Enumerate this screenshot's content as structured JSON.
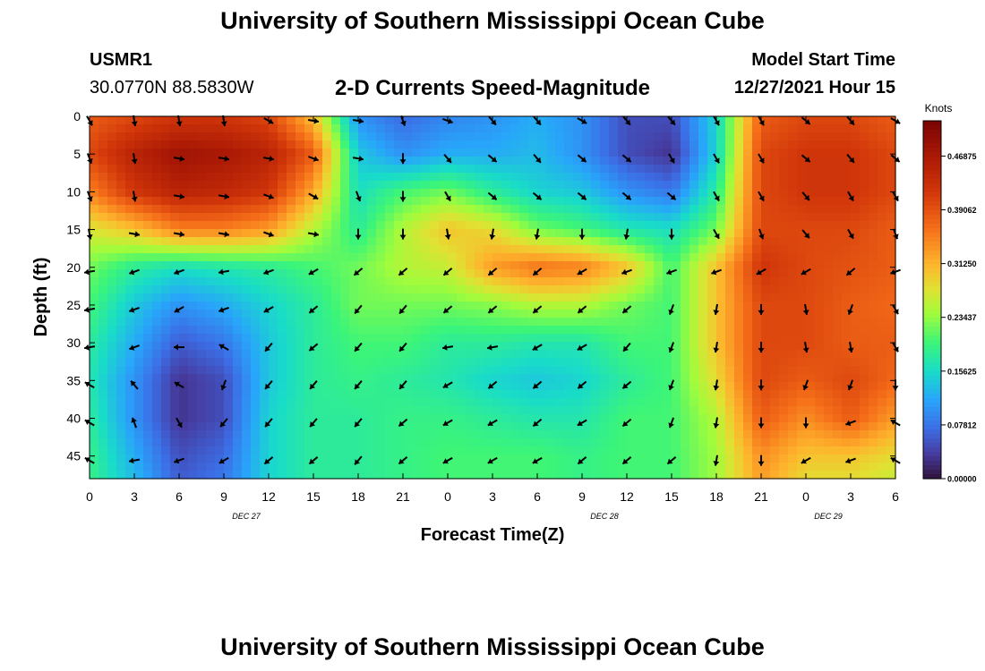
{
  "title": "University of Southern Mississippi Ocean Cube",
  "station": {
    "name": "USMR1",
    "coords": "30.0770N  88.5830W"
  },
  "model_start": {
    "label": "Model Start Time",
    "value": "12/27/2021 Hour 15"
  },
  "chart_data": {
    "type": "heatmap",
    "title": "2-D Currents Speed-Magnitude",
    "xlabel": "Forecast Time(Z)",
    "ylabel": "Depth (ft)",
    "x_tick_labels": [
      "0",
      "3",
      "6",
      "9",
      "12",
      "15",
      "18",
      "21",
      "0",
      "3",
      "6",
      "9",
      "12",
      "15",
      "18",
      "21",
      "0",
      "3",
      "6"
    ],
    "x_range_hours": [
      0,
      54
    ],
    "date_labels": [
      {
        "text": "DEC 27",
        "hour": 10.5
      },
      {
        "text": "DEC 28",
        "hour": 34.5
      },
      {
        "text": "DEC 29",
        "hour": 49.5
      }
    ],
    "y_ticks": [
      0,
      5,
      10,
      15,
      20,
      25,
      30,
      35,
      40,
      45
    ],
    "ylim": [
      0,
      48
    ],
    "y_inverted": true,
    "colorbar": {
      "label": "Knots",
      "ticks": [
        "0.46875",
        "0.39062",
        "0.31250",
        "0.23437",
        "0.15625",
        "0.07812",
        "0.00000"
      ],
      "range": [
        0,
        0.52
      ]
    },
    "speed_grid": {
      "hours": [
        0,
        3,
        6,
        9,
        12,
        15,
        18,
        21,
        24,
        27,
        30,
        33,
        36,
        39,
        42,
        45,
        48,
        51,
        54
      ],
      "depths": [
        0,
        5,
        10,
        15,
        20,
        25,
        30,
        35,
        40,
        45,
        48
      ],
      "values": [
        [
          0.38,
          0.4,
          0.42,
          0.42,
          0.4,
          0.3,
          0.1,
          0.07,
          0.09,
          0.1,
          0.12,
          0.1,
          0.05,
          0.05,
          0.15,
          0.38,
          0.4,
          0.4,
          0.38
        ],
        [
          0.4,
          0.45,
          0.48,
          0.47,
          0.45,
          0.38,
          0.14,
          0.1,
          0.12,
          0.12,
          0.13,
          0.1,
          0.05,
          0.03,
          0.15,
          0.4,
          0.42,
          0.42,
          0.4
        ],
        [
          0.35,
          0.42,
          0.45,
          0.44,
          0.42,
          0.32,
          0.16,
          0.2,
          0.22,
          0.18,
          0.15,
          0.14,
          0.1,
          0.08,
          0.18,
          0.4,
          0.42,
          0.42,
          0.4
        ],
        [
          0.27,
          0.3,
          0.35,
          0.35,
          0.33,
          0.25,
          0.18,
          0.25,
          0.3,
          0.28,
          0.22,
          0.2,
          0.17,
          0.16,
          0.22,
          0.4,
          0.4,
          0.4,
          0.38
        ],
        [
          0.22,
          0.18,
          0.16,
          0.17,
          0.18,
          0.2,
          0.22,
          0.25,
          0.26,
          0.33,
          0.36,
          0.35,
          0.3,
          0.2,
          0.3,
          0.42,
          0.4,
          0.39,
          0.38
        ],
        [
          0.2,
          0.14,
          0.1,
          0.12,
          0.15,
          0.18,
          0.22,
          0.22,
          0.22,
          0.23,
          0.25,
          0.25,
          0.22,
          0.2,
          0.3,
          0.4,
          0.4,
          0.38,
          0.37
        ],
        [
          0.18,
          0.12,
          0.06,
          0.08,
          0.14,
          0.18,
          0.2,
          0.2,
          0.18,
          0.18,
          0.17,
          0.17,
          0.2,
          0.2,
          0.3,
          0.4,
          0.4,
          0.38,
          0.38
        ],
        [
          0.17,
          0.1,
          0.03,
          0.05,
          0.14,
          0.18,
          0.19,
          0.18,
          0.17,
          0.15,
          0.14,
          0.15,
          0.18,
          0.2,
          0.28,
          0.4,
          0.38,
          0.4,
          0.37
        ],
        [
          0.18,
          0.1,
          0.03,
          0.05,
          0.15,
          0.18,
          0.18,
          0.19,
          0.19,
          0.18,
          0.17,
          0.17,
          0.2,
          0.2,
          0.25,
          0.38,
          0.34,
          0.38,
          0.33
        ],
        [
          0.19,
          0.12,
          0.05,
          0.07,
          0.15,
          0.18,
          0.18,
          0.19,
          0.2,
          0.2,
          0.2,
          0.19,
          0.2,
          0.2,
          0.24,
          0.34,
          0.3,
          0.3,
          0.28
        ],
        [
          0.19,
          0.13,
          0.06,
          0.08,
          0.15,
          0.18,
          0.18,
          0.19,
          0.2,
          0.2,
          0.2,
          0.19,
          0.2,
          0.2,
          0.24,
          0.33,
          0.28,
          0.28,
          0.26
        ]
      ]
    },
    "vector_grid": {
      "hours": [
        0,
        3,
        6,
        9,
        12,
        15,
        18,
        21,
        24,
        27,
        30,
        33,
        36,
        39,
        42,
        45,
        48,
        51,
        54
      ],
      "depths": [
        0,
        5,
        10,
        15,
        20,
        25,
        30,
        35,
        40,
        45
      ],
      "direction_deg": [
        [
          150,
          170,
          170,
          170,
          120,
          100,
          100,
          160,
          110,
          140,
          140,
          120,
          140,
          140,
          150,
          150,
          130,
          140,
          120
        ],
        [
          160,
          170,
          100,
          100,
          100,
          110,
          100,
          180,
          140,
          130,
          140,
          130,
          130,
          150,
          150,
          150,
          130,
          140,
          130
        ],
        [
          160,
          170,
          100,
          100,
          110,
          120,
          160,
          180,
          150,
          130,
          130,
          130,
          130,
          130,
          150,
          150,
          140,
          150,
          150
        ],
        [
          170,
          100,
          100,
          100,
          110,
          100,
          180,
          180,
          170,
          190,
          190,
          180,
          190,
          180,
          150,
          160,
          140,
          150,
          160
        ],
        [
          260,
          250,
          250,
          260,
          250,
          240,
          230,
          230,
          230,
          230,
          230,
          240,
          250,
          250,
          250,
          240,
          240,
          230,
          250
        ],
        [
          260,
          250,
          240,
          250,
          240,
          230,
          220,
          220,
          230,
          230,
          230,
          230,
          230,
          200,
          190,
          180,
          170,
          200,
          150
        ],
        [
          260,
          250,
          270,
          300,
          220,
          230,
          220,
          220,
          260,
          260,
          240,
          240,
          220,
          200,
          190,
          180,
          170,
          170,
          150
        ],
        [
          300,
          320,
          300,
          200,
          220,
          220,
          220,
          220,
          240,
          230,
          230,
          230,
          230,
          200,
          190,
          180,
          200,
          200,
          180
        ],
        [
          300,
          340,
          150,
          220,
          220,
          220,
          220,
          230,
          240,
          240,
          230,
          240,
          230,
          200,
          190,
          180,
          180,
          250,
          300
        ],
        [
          300,
          260,
          250,
          240,
          230,
          230,
          220,
          230,
          240,
          240,
          240,
          230,
          230,
          230,
          190,
          180,
          240,
          250,
          300
        ]
      ]
    }
  }
}
